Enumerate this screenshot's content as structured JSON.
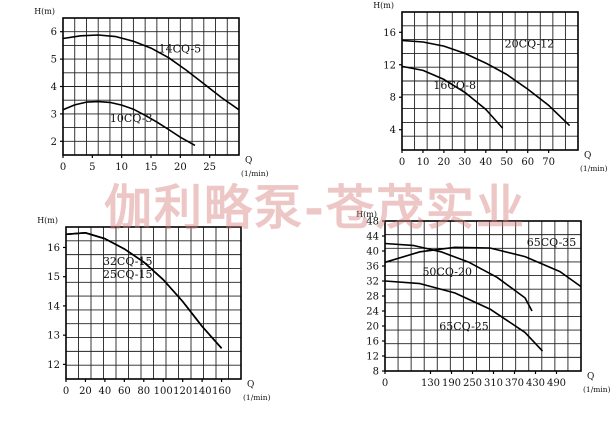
{
  "watermark": "伽利略泵-苍茂实业",
  "chart_data": [
    {
      "type": "line",
      "ylabel": "H(m)",
      "xlabel": "Q",
      "xunit": "(1/min)",
      "xlim": [
        0,
        30
      ],
      "ylim": [
        1.5,
        6.5
      ],
      "xticks": [
        0,
        5,
        10,
        15,
        20,
        25
      ],
      "yticks": [
        2,
        3,
        4,
        5,
        6
      ],
      "grid": true,
      "series": [
        {
          "name": "14CQ-5",
          "x": [
            0,
            3,
            6,
            9,
            12,
            15,
            18,
            21,
            24,
            27,
            30
          ],
          "y": [
            5.75,
            5.85,
            5.88,
            5.82,
            5.65,
            5.4,
            5.05,
            4.6,
            4.1,
            3.6,
            3.15
          ]
        },
        {
          "name": "10CQ-3",
          "x": [
            0,
            2,
            4,
            6,
            8,
            10,
            12,
            14,
            16,
            18,
            20,
            22.5
          ],
          "y": [
            3.15,
            3.33,
            3.43,
            3.45,
            3.42,
            3.32,
            3.17,
            2.95,
            2.7,
            2.43,
            2.15,
            1.85
          ]
        }
      ]
    },
    {
      "type": "line",
      "ylabel": "H(m)",
      "xlabel": "Q",
      "xunit": "(1/min)",
      "xlim": [
        0,
        84
      ],
      "ylim": [
        1.5,
        18.5
      ],
      "xticks": [
        0,
        10,
        20,
        30,
        40,
        50,
        60,
        70
      ],
      "yticks": [
        4,
        8,
        12,
        16
      ],
      "grid": true,
      "series": [
        {
          "name": "20CQ-12",
          "x": [
            0,
            10,
            20,
            30,
            40,
            50,
            60,
            70,
            80
          ],
          "y": [
            15.0,
            14.8,
            14.3,
            13.4,
            12.2,
            10.8,
            9.0,
            7.0,
            4.5
          ]
        },
        {
          "name": "16CQ-8",
          "x": [
            0,
            10,
            20,
            30,
            40,
            48
          ],
          "y": [
            11.8,
            11.3,
            10.2,
            8.6,
            6.5,
            4.2
          ]
        }
      ]
    },
    {
      "type": "line",
      "ylabel": "H(m)",
      "xlabel": "Q",
      "xunit": "(1/min)",
      "xlim": [
        0,
        180
      ],
      "ylim": [
        11.5,
        16.7
      ],
      "xticks": [
        0,
        20,
        40,
        60,
        80,
        100,
        120,
        140,
        160
      ],
      "yticks": [
        12,
        13,
        14,
        15,
        16
      ],
      "grid": true,
      "series": [
        {
          "name": "32CQ-15",
          "x": [
            0,
            20,
            40,
            60,
            80,
            100,
            120,
            140,
            160
          ],
          "y": [
            16.45,
            16.5,
            16.3,
            15.95,
            15.5,
            14.9,
            14.15,
            13.3,
            12.55
          ]
        },
        {
          "name": "25CQ-15",
          "x": [
            0,
            20,
            40,
            60,
            80,
            100,
            120,
            140,
            160
          ],
          "y": [
            16.45,
            16.5,
            16.3,
            15.95,
            15.5,
            14.9,
            14.15,
            13.3,
            12.55
          ]
        }
      ]
    },
    {
      "type": "line",
      "ylabel": "H(m)",
      "xlabel": "Q",
      "xunit": "(1/min)",
      "xlim": [
        0,
        560
      ],
      "ylim": [
        8,
        48
      ],
      "xticks": [
        0,
        130,
        190,
        250,
        310,
        370,
        430,
        490
      ],
      "yticks": [
        8,
        12,
        16,
        20,
        24,
        28,
        32,
        36,
        40,
        44,
        48
      ],
      "grid": true,
      "series": [
        {
          "name": "65CQ-35",
          "x": [
            0,
            100,
            200,
            300,
            400,
            500,
            560
          ],
          "y": [
            37,
            39.8,
            41,
            40.8,
            38.5,
            34.5,
            30.5
          ]
        },
        {
          "name": "50CQ-20",
          "x": [
            0,
            80,
            160,
            240,
            320,
            400,
            420
          ],
          "y": [
            42,
            41.5,
            39.8,
            37,
            33,
            27.5,
            24
          ]
        },
        {
          "name": "65CQ-25",
          "x": [
            0,
            100,
            200,
            300,
            400,
            450
          ],
          "y": [
            32,
            31.3,
            28.8,
            24.5,
            18.3,
            13.3
          ]
        }
      ]
    }
  ]
}
